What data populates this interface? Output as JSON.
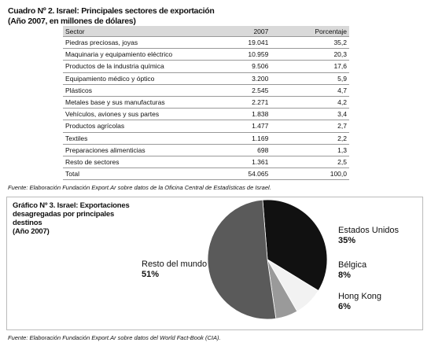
{
  "header": {
    "title": "Cuadro Nº 2. Israel: Principales sectores de exportación",
    "subtitle": "(Año 2007, en millones de dólares)"
  },
  "table": {
    "columns": [
      "Sector",
      "2007",
      "Porcentaje"
    ],
    "rows": [
      [
        "Piedras preciosas, joyas",
        "19.041",
        "35,2"
      ],
      [
        "Maquinaria y equipamiento eléctrico",
        "10.959",
        "20,3"
      ],
      [
        "Productos de la industria química",
        "9.506",
        "17,6"
      ],
      [
        "Equipamiento médico y óptico",
        "3.200",
        "5,9"
      ],
      [
        "Plásticos",
        "2.545",
        "4,7"
      ],
      [
        "Metales base y sus manufacturas",
        "2.271",
        "4,2"
      ],
      [
        "Vehículos, aviones y sus partes",
        "1.838",
        "3,4"
      ],
      [
        "Productos agrícolas",
        "1.477",
        "2,7"
      ],
      [
        "Textiles",
        "1.169",
        "2,2"
      ],
      [
        "Preparaciones alimenticias",
        "698",
        "1,3"
      ],
      [
        "Resto de sectores",
        "1.361",
        "2,5"
      ],
      [
        "Total",
        "54.065",
        "100,0"
      ]
    ]
  },
  "table_source": "Fuente: Elaboración Fundación Export.Ar sobre datos de la Oficina Central de Estadísticas de Israel.",
  "chart_data": {
    "type": "pie",
    "title": "Gráfico Nº 3. Israel: Exportaciones desagregadas por principales destinos",
    "subtitle": "(Año 2007)",
    "categories": [
      "Estados Unidos",
      "Bélgica",
      "Hong Kong",
      "Resto del mundo"
    ],
    "values": [
      35,
      8,
      6,
      51
    ],
    "value_labels": [
      "35%",
      "8%",
      "6%",
      "51%"
    ],
    "colors": [
      "#111111",
      "#f2f2f2",
      "#9a9a9a",
      "#5a5a5a"
    ]
  },
  "chart_source": "Fuente: Elaboración Fundación Export.Ar sobre datos del World Fact-Book (CIA)."
}
